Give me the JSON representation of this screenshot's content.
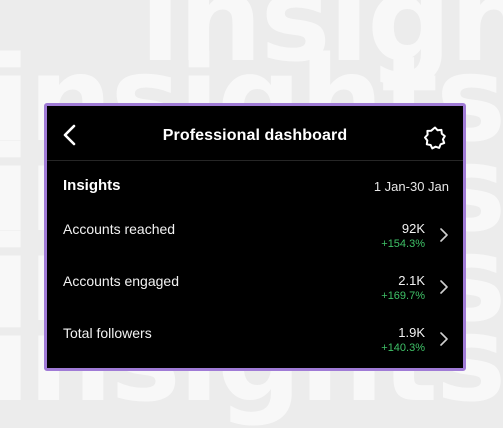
{
  "background": {
    "watermark_words": [
      "insights",
      "insights",
      "insights",
      "insights",
      "insights"
    ]
  },
  "header": {
    "title": "Professional dashboard",
    "back_icon": "chevron-left-icon",
    "settings_icon": "gear-icon"
  },
  "insights": {
    "title": "Insights",
    "date_range": "1 Jan-30 Jan",
    "rows": [
      {
        "label": "Accounts reached",
        "value": "92K",
        "change": "+154.3%"
      },
      {
        "label": "Accounts engaged",
        "value": "2.1K",
        "change": "+169.7%"
      },
      {
        "label": "Total followers",
        "value": "1.9K",
        "change": "+140.3%"
      }
    ]
  },
  "colors": {
    "panel_border": "#a07bd6",
    "positive_change": "#3fc167",
    "panel_background": "#000000"
  }
}
